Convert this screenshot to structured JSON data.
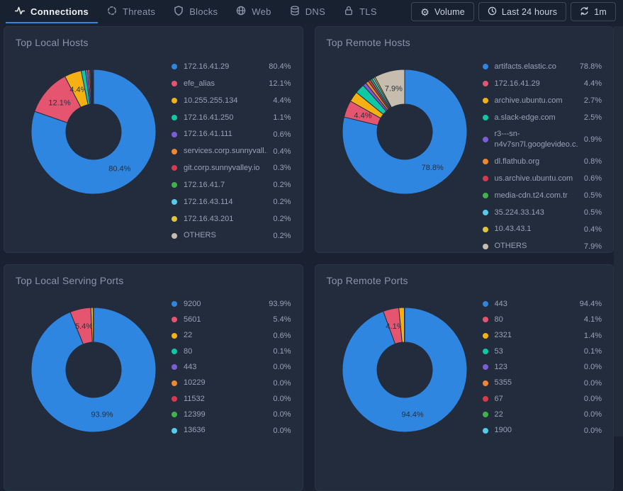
{
  "navbar": {
    "tabs": [
      {
        "label": "Connections",
        "icon": "activity-icon",
        "active": true
      },
      {
        "label": "Threats",
        "icon": "target-icon",
        "active": false
      },
      {
        "label": "Blocks",
        "icon": "shield-icon",
        "active": false
      },
      {
        "label": "Web",
        "icon": "globe-icon",
        "active": false
      },
      {
        "label": "DNS",
        "icon": "database-icon",
        "active": false
      },
      {
        "label": "TLS",
        "icon": "lock-icon",
        "active": false
      }
    ],
    "actions": [
      {
        "label": "Volume",
        "icon": "gear-icon"
      },
      {
        "label": "Last 24 hours",
        "icon": "clock-icon"
      },
      {
        "label": "1m",
        "icon": "refresh-icon"
      }
    ]
  },
  "colors": {
    "accent": "#2e86e0",
    "page_bg": "#1a2231",
    "navbar_bg": "#18212f",
    "panel_bg": "#222c3c",
    "panel_border": "#293445",
    "legend_text": "#99a2b4",
    "title_text": "#8a95a8",
    "slice_label": "#273142"
  },
  "chart_data": [
    {
      "type": "pie",
      "subtype": "donut",
      "title": "Top Local Hosts",
      "legend_position": "right",
      "slice_label_threshold_pct": 4,
      "series": [
        {
          "label": "172.16.41.29",
          "value": 80.4,
          "color": "#2e86e0"
        },
        {
          "label": "efe_alias",
          "value": 12.1,
          "color": "#e65570"
        },
        {
          "label": "10.255.255.134",
          "value": 4.4,
          "color": "#f5b112"
        },
        {
          "label": "172.16.41.250",
          "value": 1.1,
          "color": "#0ec9a4"
        },
        {
          "label": "172.16.41.111",
          "value": 0.6,
          "color": "#7b5dd6"
        },
        {
          "label": "services.corp.sunnyvall...",
          "value": 0.4,
          "color": "#f0882e"
        },
        {
          "label": "git.corp.sunnyvalley.io",
          "value": 0.3,
          "color": "#d9394f"
        },
        {
          "label": "172.16.41.7",
          "value": 0.2,
          "color": "#43b14b"
        },
        {
          "label": "172.16.43.114",
          "value": 0.2,
          "color": "#55cdea"
        },
        {
          "label": "172.16.43.201",
          "value": 0.2,
          "color": "#e2c33c"
        },
        {
          "label": "OTHERS",
          "value": 0.2,
          "color": "#c7bdae"
        }
      ]
    },
    {
      "type": "pie",
      "subtype": "donut",
      "title": "Top Remote Hosts",
      "legend_position": "right",
      "slice_label_threshold_pct": 4,
      "series": [
        {
          "label": "artifacts.elastic.co",
          "value": 78.8,
          "color": "#2e86e0"
        },
        {
          "label": "172.16.41.29",
          "value": 4.4,
          "color": "#e65570"
        },
        {
          "label": "archive.ubuntu.com",
          "value": 2.7,
          "color": "#f5b112"
        },
        {
          "label": "a.slack-edge.com",
          "value": 2.5,
          "color": "#0ec9a4"
        },
        {
          "label": "r3---sn-\nn4v7sn7l.googlevideo.c...",
          "value": 0.9,
          "color": "#7b5dd6"
        },
        {
          "label": "dl.flathub.org",
          "value": 0.8,
          "color": "#f0882e"
        },
        {
          "label": "us.archive.ubuntu.com",
          "value": 0.6,
          "color": "#d9394f"
        },
        {
          "label": "media-cdn.t24.com.tr",
          "value": 0.5,
          "color": "#43b14b"
        },
        {
          "label": "35.224.33.143",
          "value": 0.5,
          "color": "#55cdea"
        },
        {
          "label": "10.43.43.1",
          "value": 0.4,
          "color": "#e2c33c"
        },
        {
          "label": "OTHERS",
          "value": 7.9,
          "color": "#c7bdae"
        }
      ]
    },
    {
      "type": "pie",
      "subtype": "donut",
      "title": "Top Local Serving Ports",
      "legend_position": "right",
      "slice_label_threshold_pct": 4,
      "series": [
        {
          "label": "9200",
          "value": 93.9,
          "color": "#2e86e0"
        },
        {
          "label": "5601",
          "value": 5.4,
          "color": "#e65570"
        },
        {
          "label": "22",
          "value": 0.6,
          "color": "#f5b112"
        },
        {
          "label": "80",
          "value": 0.1,
          "color": "#0ec9a4"
        },
        {
          "label": "443",
          "value": 0.0,
          "color": "#7b5dd6"
        },
        {
          "label": "10229",
          "value": 0.0,
          "color": "#f0882e"
        },
        {
          "label": "11532",
          "value": 0.0,
          "color": "#d9394f"
        },
        {
          "label": "12399",
          "value": 0.0,
          "color": "#43b14b"
        },
        {
          "label": "13636",
          "value": 0.0,
          "color": "#55cdea"
        }
      ]
    },
    {
      "type": "pie",
      "subtype": "donut",
      "title": "Top Remote Ports",
      "legend_position": "right",
      "slice_label_threshold_pct": 4,
      "series": [
        {
          "label": "443",
          "value": 94.4,
          "color": "#2e86e0"
        },
        {
          "label": "80",
          "value": 4.1,
          "color": "#e65570"
        },
        {
          "label": "2321",
          "value": 1.4,
          "color": "#f5b112"
        },
        {
          "label": "53",
          "value": 0.1,
          "color": "#0ec9a4"
        },
        {
          "label": "123",
          "value": 0.0,
          "color": "#7b5dd6"
        },
        {
          "label": "5355",
          "value": 0.0,
          "color": "#f0882e"
        },
        {
          "label": "67",
          "value": 0.0,
          "color": "#d9394f"
        },
        {
          "label": "22",
          "value": 0.0,
          "color": "#43b14b"
        },
        {
          "label": "1900",
          "value": 0.0,
          "color": "#55cdea"
        }
      ]
    }
  ]
}
